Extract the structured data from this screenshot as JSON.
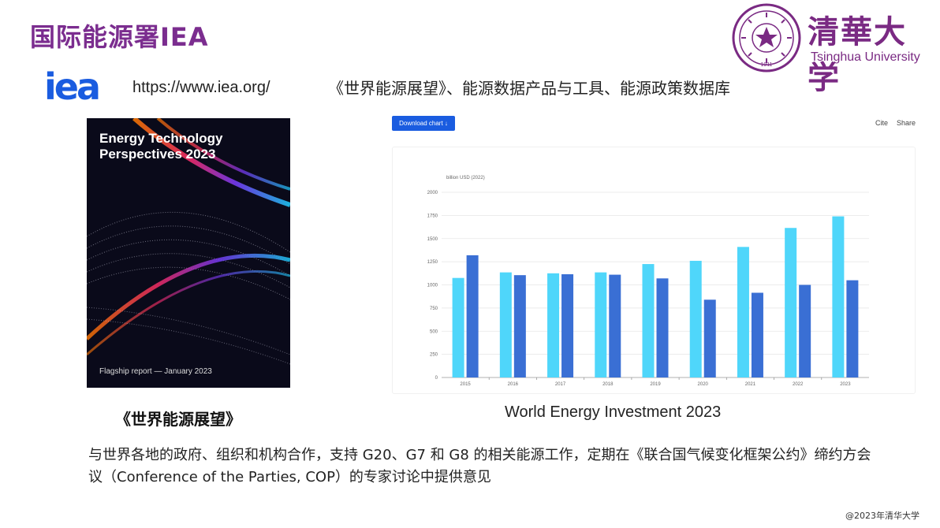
{
  "header": {
    "title": "国际能源署IEA"
  },
  "tsinghua": {
    "calligraphy": "清華大学",
    "english": "Tsinghua University",
    "seal_year": "1911"
  },
  "iea": {
    "logo_text": "iea",
    "url": "https://www.iea.org/",
    "products": "《世界能源展望》、能源数据产品与工具、能源政策数据库"
  },
  "report": {
    "cover_title": "Energy Technology Perspectives 2023",
    "cover_subtitle": "Flagship report — January 2023",
    "caption": "《世界能源展望》"
  },
  "chart_toolbar": {
    "download_label": "Download chart ↓",
    "cite_label": "Cite",
    "share_label": "Share"
  },
  "chart_caption": "World Energy Investment 2023",
  "description": "与世界各地的政府、组织和机构合作，支持 G20、G7 和 G8 的相关能源工作，定期在《联合国气候变化框架公约》缔约方会议（Conference of the Parties, COP）的专家讨论中提供意见",
  "footer": "@2023年清华大学",
  "colors": {
    "title": "#7b2d8f",
    "iea_blue": "#1a5ce0",
    "series_light": "#4fd6fa",
    "series_dark": "#3a6fd4"
  },
  "chart_data": {
    "type": "bar",
    "ylabel": "billion USD (2022)",
    "ylim": [
      0,
      2000
    ],
    "yticks": [
      0,
      250,
      500,
      750,
      1000,
      1250,
      1500,
      1750,
      2000
    ],
    "categories": [
      "2015",
      "2016",
      "2017",
      "2018",
      "2019",
      "2020",
      "2021",
      "2022",
      "2023"
    ],
    "grid": true,
    "series": [
      {
        "values": [
          1075,
          1135,
          1125,
          1135,
          1225,
          1260,
          1410,
          1615,
          1740
        ]
      },
      {
        "values": [
          1320,
          1105,
          1115,
          1110,
          1070,
          840,
          915,
          1000,
          1050
        ]
      }
    ]
  }
}
